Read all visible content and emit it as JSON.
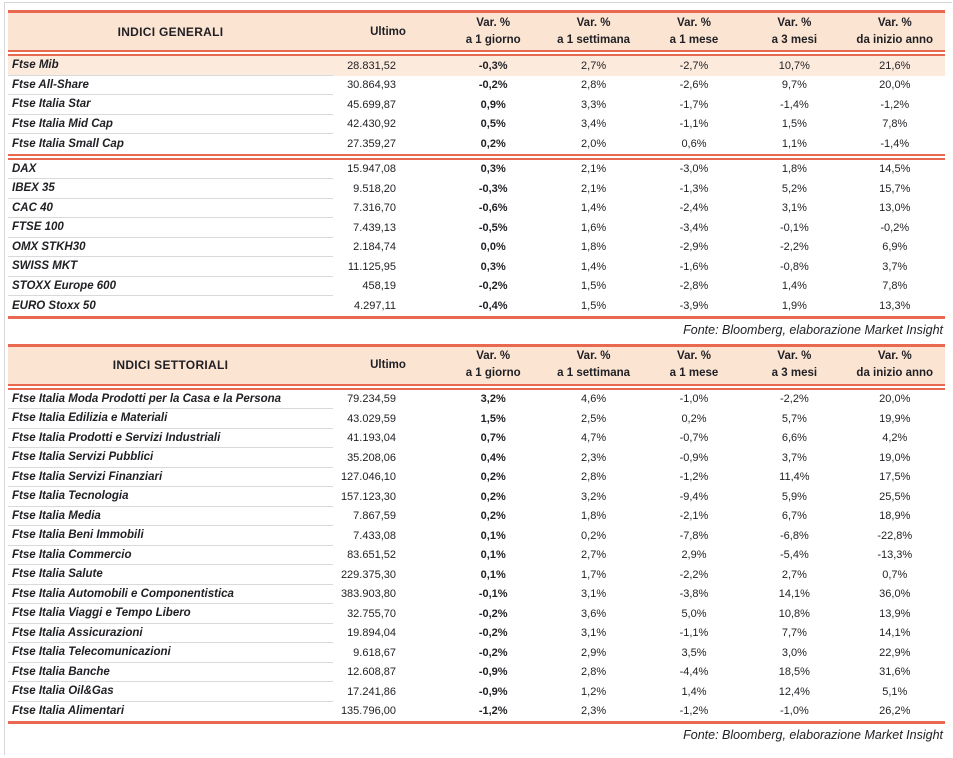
{
  "page": {
    "colors": {
      "accent": "#E8694F",
      "header_bg": "#FBE4D2",
      "highlight_bg": "#FCEBDD",
      "text": "#1F1F24",
      "row_separator": "#D9D9D9"
    }
  },
  "tables": [
    {
      "title": "INDICI GENERALI",
      "ultimo_label": "Ultimo",
      "var_columns": [
        {
          "line1": "Var. %",
          "line2": "a 1 giorno"
        },
        {
          "line1": "Var. %",
          "line2": "a 1 settimana"
        },
        {
          "line1": "Var. %",
          "line2": "a 1 mese"
        },
        {
          "line1": "Var. %",
          "line2": "a 3 mesi"
        },
        {
          "line1": "Var. %",
          "line2": "da inizio anno"
        }
      ],
      "fonte": "Fonte: Bloomberg, elaborazione Market Insight",
      "rows": [
        {
          "label": "Ftse Mib",
          "ultimo": "28.831,52",
          "vars": [
            "-0,3%",
            "2,7%",
            "-2,7%",
            "10,7%",
            "21,6%"
          ],
          "highlight": true
        },
        {
          "label": "Ftse All-Share",
          "ultimo": "30.864,93",
          "vars": [
            "-0,2%",
            "2,8%",
            "-2,6%",
            "9,7%",
            "20,0%"
          ]
        },
        {
          "label": "Ftse Italia Star",
          "ultimo": "45.699,87",
          "vars": [
            "0,9%",
            "3,3%",
            "-1,7%",
            "-1,4%",
            "-1,2%"
          ]
        },
        {
          "label": "Ftse Italia Mid Cap",
          "ultimo": "42.430,92",
          "vars": [
            "0,5%",
            "3,4%",
            "-1,1%",
            "1,5%",
            "7,8%"
          ]
        },
        {
          "label": "Ftse Italia Small Cap",
          "ultimo": "27.359,27",
          "vars": [
            "0,2%",
            "2,0%",
            "0,6%",
            "1,1%",
            "-1,4%"
          ],
          "section_end": true
        },
        {
          "label": "DAX",
          "ultimo": "15.947,08",
          "vars": [
            "0,3%",
            "2,1%",
            "-3,0%",
            "1,8%",
            "14,5%"
          ]
        },
        {
          "label": "IBEX 35",
          "ultimo": "9.518,20",
          "vars": [
            "-0,3%",
            "2,1%",
            "-1,3%",
            "5,2%",
            "15,7%"
          ]
        },
        {
          "label": "CAC 40",
          "ultimo": "7.316,70",
          "vars": [
            "-0,6%",
            "1,4%",
            "-2,4%",
            "3,1%",
            "13,0%"
          ]
        },
        {
          "label": "FTSE 100",
          "ultimo": "7.439,13",
          "vars": [
            "-0,5%",
            "1,6%",
            "-3,4%",
            "-0,1%",
            "-0,2%"
          ]
        },
        {
          "label": "OMX STKH30",
          "ultimo": "2.184,74",
          "vars": [
            "0,0%",
            "1,8%",
            "-2,9%",
            "-2,2%",
            "6,9%"
          ]
        },
        {
          "label": "SWISS MKT",
          "ultimo": "11.125,95",
          "vars": [
            "0,3%",
            "1,4%",
            "-1,6%",
            "-0,8%",
            "3,7%"
          ]
        },
        {
          "label": "STOXX Europe 600",
          "ultimo": "458,19",
          "vars": [
            "-0,2%",
            "1,5%",
            "-2,8%",
            "1,4%",
            "7,8%"
          ]
        },
        {
          "label": "EURO Stoxx 50",
          "ultimo": "4.297,11",
          "vars": [
            "-0,4%",
            "1,5%",
            "-3,9%",
            "1,9%",
            "13,3%"
          ]
        }
      ]
    },
    {
      "title": "INDICI SETTORIALI",
      "ultimo_label": "Ultimo",
      "var_columns": [
        {
          "line1": "Var. %",
          "line2": "a 1 giorno"
        },
        {
          "line1": "Var. %",
          "line2": "a 1 settimana"
        },
        {
          "line1": "Var. %",
          "line2": "a 1 mese"
        },
        {
          "line1": "Var. %",
          "line2": "a 3 mesi"
        },
        {
          "line1": "Var. %",
          "line2": "da inizio anno"
        }
      ],
      "fonte": "Fonte: Bloomberg, elaborazione Market Insight",
      "rows": [
        {
          "label": "Ftse Italia Moda Prodotti per la Casa e la Persona",
          "ultimo": "79.234,59",
          "vars": [
            "3,2%",
            "4,6%",
            "-1,0%",
            "-2,2%",
            "20,0%"
          ]
        },
        {
          "label": "Ftse Italia Edilizia e Materiali",
          "ultimo": "43.029,59",
          "vars": [
            "1,5%",
            "2,5%",
            "0,2%",
            "5,7%",
            "19,9%"
          ]
        },
        {
          "label": "Ftse Italia Prodotti e Servizi Industriali",
          "ultimo": "41.193,04",
          "vars": [
            "0,7%",
            "4,7%",
            "-0,7%",
            "6,6%",
            "4,2%"
          ]
        },
        {
          "label": "Ftse Italia Servizi Pubblici",
          "ultimo": "35.208,06",
          "vars": [
            "0,4%",
            "2,3%",
            "-0,9%",
            "3,7%",
            "19,0%"
          ]
        },
        {
          "label": "Ftse Italia Servizi Finanziari",
          "ultimo": "127.046,10",
          "vars": [
            "0,2%",
            "2,8%",
            "-1,2%",
            "11,4%",
            "17,5%"
          ]
        },
        {
          "label": "Ftse Italia Tecnologia",
          "ultimo": "157.123,30",
          "vars": [
            "0,2%",
            "3,2%",
            "-9,4%",
            "5,9%",
            "25,5%"
          ]
        },
        {
          "label": "Ftse Italia Media",
          "ultimo": "7.867,59",
          "vars": [
            "0,2%",
            "1,8%",
            "-2,1%",
            "6,7%",
            "18,9%"
          ]
        },
        {
          "label": "Ftse Italia Beni Immobili",
          "ultimo": "7.433,08",
          "vars": [
            "0,1%",
            "0,2%",
            "-7,8%",
            "-6,8%",
            "-22,8%"
          ]
        },
        {
          "label": "Ftse Italia Commercio",
          "ultimo": "83.651,52",
          "vars": [
            "0,1%",
            "2,7%",
            "2,9%",
            "-5,4%",
            "-13,3%"
          ]
        },
        {
          "label": "Ftse Italia Salute",
          "ultimo": "229.375,30",
          "vars": [
            "0,1%",
            "1,7%",
            "-2,2%",
            "2,7%",
            "0,7%"
          ]
        },
        {
          "label": "Ftse Italia Automobili e Componentistica",
          "ultimo": "383.903,80",
          "vars": [
            "-0,1%",
            "3,1%",
            "-3,8%",
            "14,1%",
            "36,0%"
          ]
        },
        {
          "label": "Ftse Italia Viaggi e Tempo Libero",
          "ultimo": "32.755,70",
          "vars": [
            "-0,2%",
            "3,6%",
            "5,0%",
            "10,8%",
            "13,9%"
          ]
        },
        {
          "label": "Ftse Italia Assicurazioni",
          "ultimo": "19.894,04",
          "vars": [
            "-0,2%",
            "3,1%",
            "-1,1%",
            "7,7%",
            "14,1%"
          ]
        },
        {
          "label": "Ftse Italia Telecomunicazioni",
          "ultimo": "9.618,67",
          "vars": [
            "-0,2%",
            "2,9%",
            "3,5%",
            "3,0%",
            "22,9%"
          ]
        },
        {
          "label": "Ftse Italia Banche",
          "ultimo": "12.608,87",
          "vars": [
            "-0,9%",
            "2,8%",
            "-4,4%",
            "18,5%",
            "31,6%"
          ]
        },
        {
          "label": "Ftse Italia Oil&Gas",
          "ultimo": "17.241,86",
          "vars": [
            "-0,9%",
            "1,2%",
            "1,4%",
            "12,4%",
            "5,1%"
          ]
        },
        {
          "label": "Ftse Italia Alimentari",
          "ultimo": "135.796,00",
          "vars": [
            "-1,2%",
            "2,3%",
            "-1,2%",
            "-1,0%",
            "26,2%"
          ]
        }
      ]
    }
  ]
}
